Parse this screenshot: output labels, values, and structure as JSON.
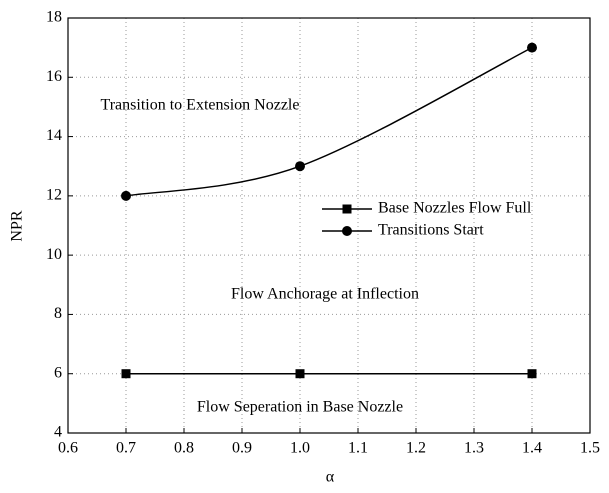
{
  "chart_data": {
    "type": "line",
    "xlabel": "α",
    "ylabel": "NPR",
    "xlim": [
      0.6,
      1.5
    ],
    "xticks": [
      0.6,
      0.7,
      0.8,
      0.9,
      {
        "value": 1,
        "label": "1.0"
      },
      1.1,
      1.2,
      1.3,
      1.4,
      1.5
    ],
    "ylim": [
      4,
      18
    ],
    "yticks": [
      4,
      6,
      8,
      10,
      12,
      14,
      16,
      18
    ],
    "grid": true,
    "legend": "right",
    "series": [
      {
        "name": "Base Nozzles Flow Full",
        "color": "#000000",
        "marker": "square",
        "smooth": false,
        "x": [
          0.7,
          1.0,
          1.4
        ],
        "values": [
          6,
          6,
          6
        ]
      },
      {
        "name": "Transitions Start",
        "color": "#000000",
        "marker": "circle",
        "smooth": true,
        "x": [
          0.7,
          1.0,
          1.4
        ],
        "values": [
          12,
          13,
          17
        ]
      }
    ],
    "annotations": [
      "Transition to Extension Nozzle",
      "Flow Anchorage at Inflection",
      "Flow Seperation in Base Nozzle"
    ]
  }
}
